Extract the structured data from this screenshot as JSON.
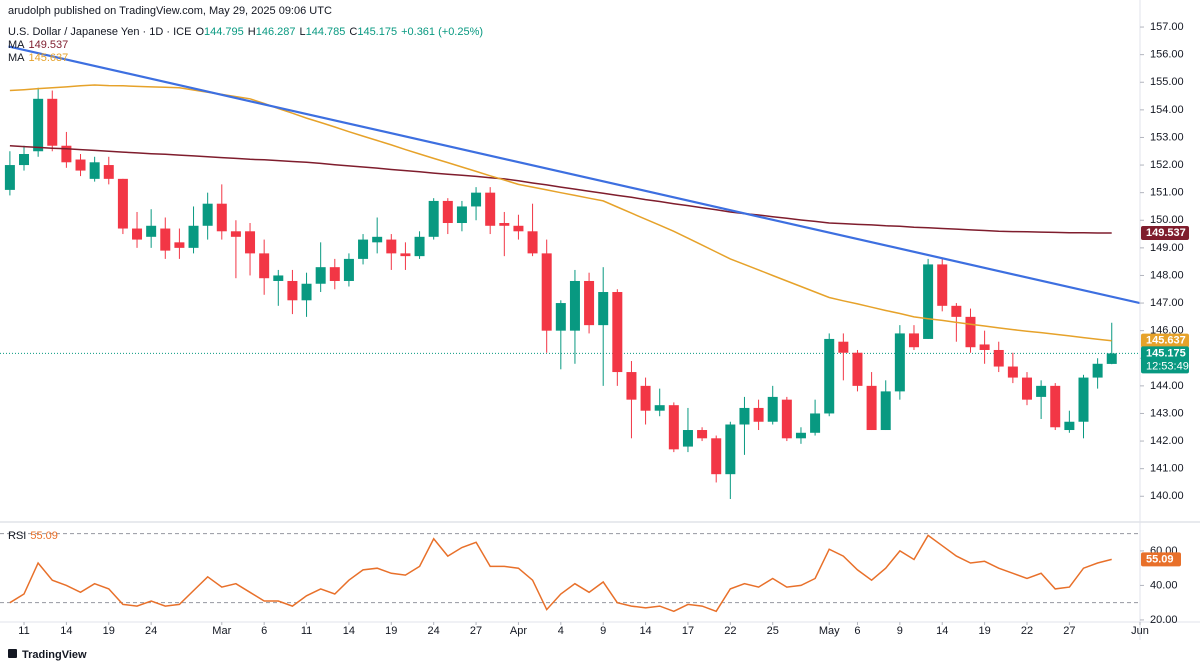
{
  "header": {
    "publisher": "arudolph published on TradingView.com, May 29, 2025 09:06 UTC"
  },
  "footer": {
    "brand": "TradingView"
  },
  "chart_data": [
    {
      "type": "candlestick",
      "symbol": "U.S. Dollar / Japanese Yen · 1D · ICE",
      "ohlc_letters": [
        "O",
        "H",
        "L",
        "C"
      ],
      "change": "+0.361 (+0.25%)",
      "countdown": "12:53:49",
      "up_color": "#089981",
      "down_color": "#f23645",
      "xlim": [
        -0.7,
        80
      ],
      "ylim": [
        139.14,
        157.98
      ],
      "xticks": [
        {
          "value": 1,
          "label": "11"
        },
        {
          "value": 4,
          "label": "14"
        },
        {
          "value": 7,
          "label": "19"
        },
        {
          "value": 10,
          "label": "24"
        },
        {
          "value": 15,
          "label": "Mar"
        },
        {
          "value": 18,
          "label": "6"
        },
        {
          "value": 21,
          "label": "11"
        },
        {
          "value": 24,
          "label": "14"
        },
        {
          "value": 27,
          "label": "19"
        },
        {
          "value": 30,
          "label": "24"
        },
        {
          "value": 33,
          "label": "27"
        },
        {
          "value": 36,
          "label": "Apr"
        },
        {
          "value": 39,
          "label": "4"
        },
        {
          "value": 42,
          "label": "9"
        },
        {
          "value": 45,
          "label": "14"
        },
        {
          "value": 48,
          "label": "17"
        },
        {
          "value": 51,
          "label": "22"
        },
        {
          "value": 54,
          "label": "25"
        },
        {
          "value": 58,
          "label": "May"
        },
        {
          "value": 60,
          "label": "6"
        },
        {
          "value": 63,
          "label": "9"
        },
        {
          "value": 66,
          "label": "14"
        },
        {
          "value": 69,
          "label": "19"
        },
        {
          "value": 72,
          "label": "22"
        },
        {
          "value": 75,
          "label": "27"
        },
        {
          "value": 80,
          "label": "Jun"
        }
      ],
      "yticks": [
        {
          "value": 140,
          "label": "140.00"
        },
        {
          "value": 141,
          "label": "141.00"
        },
        {
          "value": 142,
          "label": "142.00"
        },
        {
          "value": 143,
          "label": "143.00"
        },
        {
          "value": 144,
          "label": "144.00"
        },
        {
          "value": 145,
          "label": "145.00"
        },
        {
          "value": 146,
          "label": "146.00"
        },
        {
          "value": 147,
          "label": "147.00"
        },
        {
          "value": 148,
          "label": "148.00"
        },
        {
          "value": 149,
          "label": "149.00"
        },
        {
          "value": 150,
          "label": "150.00"
        },
        {
          "value": 151,
          "label": "151.00"
        },
        {
          "value": 152,
          "label": "152.00"
        },
        {
          "value": 153,
          "label": "153.00"
        },
        {
          "value": 154,
          "label": "154.00"
        },
        {
          "value": 155,
          "label": "155.00"
        },
        {
          "value": 156,
          "label": "156.00"
        },
        {
          "value": 157,
          "label": "157.00"
        }
      ],
      "open": [
        151.1,
        152.0,
        152.5,
        154.4,
        152.7,
        152.2,
        151.5,
        152.0,
        151.5,
        149.7,
        149.4,
        149.7,
        149.2,
        149.0,
        149.8,
        150.6,
        149.6,
        149.6,
        148.8,
        147.8,
        147.8,
        147.1,
        147.7,
        148.3,
        147.8,
        148.6,
        149.2,
        149.3,
        148.8,
        148.7,
        149.4,
        150.7,
        149.9,
        150.5,
        151.0,
        149.9,
        149.8,
        149.6,
        148.8,
        146.0,
        146.0,
        147.8,
        146.2,
        147.4,
        144.5,
        144.0,
        143.1,
        143.3,
        141.8,
        142.4,
        142.1,
        140.8,
        142.6,
        143.2,
        142.7,
        143.5,
        142.1,
        142.3,
        143.0,
        145.6,
        145.2,
        144.0,
        142.4,
        143.8,
        145.9,
        145.7,
        148.4,
        146.9,
        146.5,
        145.5,
        145.3,
        144.7,
        144.3,
        143.6,
        144.0,
        142.4,
        142.7,
        144.3,
        144.795
      ],
      "high": [
        152.5,
        152.7,
        154.8,
        154.7,
        153.2,
        152.4,
        152.3,
        152.3,
        151.5,
        150.3,
        150.4,
        150.1,
        149.7,
        150.5,
        151.0,
        151.3,
        150.0,
        149.9,
        149.3,
        148.2,
        148.2,
        148.1,
        149.2,
        148.6,
        148.8,
        149.5,
        150.1,
        149.5,
        149.2,
        149.6,
        150.8,
        150.8,
        150.7,
        151.2,
        151.2,
        150.3,
        150.2,
        150.6,
        149.3,
        147.1,
        148.2,
        148.1,
        148.3,
        147.5,
        144.9,
        144.3,
        143.9,
        143.4,
        143.2,
        142.5,
        142.2,
        142.7,
        143.6,
        143.5,
        144.0,
        143.6,
        142.5,
        143.5,
        145.9,
        145.9,
        145.3,
        144.5,
        144.2,
        146.2,
        146.2,
        148.6,
        148.6,
        147.0,
        146.8,
        146.0,
        145.6,
        145.2,
        144.5,
        144.2,
        144.1,
        143.1,
        144.4,
        145.0,
        146.287
      ],
      "low": [
        150.9,
        151.8,
        152.3,
        152.5,
        151.9,
        151.6,
        151.4,
        151.3,
        149.5,
        149.0,
        149.0,
        148.6,
        148.6,
        148.8,
        149.3,
        149.3,
        147.9,
        148.0,
        147.3,
        146.9,
        146.6,
        146.5,
        147.4,
        147.5,
        147.6,
        148.4,
        148.8,
        148.2,
        148.2,
        148.6,
        149.3,
        149.5,
        149.6,
        150.0,
        149.5,
        148.7,
        149.3,
        148.7,
        145.2,
        144.6,
        144.8,
        145.9,
        144.0,
        144.0,
        142.1,
        142.6,
        142.9,
        141.6,
        141.6,
        142.0,
        140.5,
        139.9,
        141.5,
        142.4,
        142.6,
        142.0,
        141.9,
        142.2,
        142.9,
        144.2,
        143.8,
        142.4,
        142.4,
        143.5,
        145.3,
        145.7,
        146.7,
        145.6,
        145.2,
        144.8,
        144.5,
        144.1,
        143.3,
        142.8,
        142.4,
        142.3,
        142.1,
        143.9,
        144.785
      ],
      "close": [
        152.0,
        152.4,
        154.4,
        152.7,
        152.1,
        151.8,
        152.1,
        151.5,
        149.7,
        149.3,
        149.8,
        148.9,
        149.0,
        149.8,
        150.6,
        149.6,
        149.4,
        148.8,
        147.9,
        148.0,
        147.1,
        147.7,
        148.3,
        147.8,
        148.6,
        149.3,
        149.4,
        148.8,
        148.7,
        149.4,
        150.7,
        149.9,
        150.5,
        151.0,
        149.8,
        149.8,
        149.6,
        148.8,
        146.0,
        147.0,
        147.8,
        146.2,
        147.4,
        144.5,
        143.5,
        143.1,
        143.3,
        141.7,
        142.4,
        142.1,
        140.8,
        142.6,
        143.2,
        142.7,
        143.6,
        142.1,
        142.3,
        143.0,
        145.7,
        145.2,
        144.0,
        142.4,
        143.8,
        145.9,
        145.4,
        148.4,
        146.9,
        146.5,
        145.4,
        145.3,
        144.7,
        144.3,
        143.5,
        144.0,
        142.5,
        142.7,
        144.3,
        144.8,
        145.175
      ],
      "series": [
        {
          "name": "MA",
          "color": "#7f1d2d",
          "values": [
            152.7,
            152.67,
            152.64,
            152.61,
            152.59,
            152.56,
            152.53,
            152.5,
            152.47,
            152.44,
            152.41,
            152.39,
            152.36,
            152.33,
            152.3,
            152.27,
            152.24,
            152.21,
            152.19,
            152.16,
            152.13,
            152.1,
            152.06,
            152.01,
            151.97,
            151.93,
            151.89,
            151.84,
            151.8,
            151.76,
            151.71,
            151.67,
            151.63,
            151.59,
            151.54,
            151.5,
            151.43,
            151.35,
            151.28,
            151.2,
            151.13,
            151.05,
            150.98,
            150.9,
            150.83,
            150.75,
            150.68,
            150.6,
            150.53,
            150.45,
            150.38,
            150.3,
            150.24,
            150.19,
            150.13,
            150.07,
            150.01,
            149.96,
            149.9,
            149.88,
            149.85,
            149.83,
            149.8,
            149.78,
            149.75,
            149.73,
            149.7,
            149.68,
            149.65,
            149.63,
            149.6,
            149.59,
            149.58,
            149.57,
            149.56,
            149.55,
            149.55,
            149.54,
            149.537
          ]
        },
        {
          "name": "MA",
          "color": "#e6a22a",
          "values": [
            154.7,
            154.73,
            154.77,
            154.8,
            154.83,
            154.87,
            154.9,
            154.88,
            154.87,
            154.85,
            154.83,
            154.82,
            154.8,
            154.72,
            154.64,
            154.56,
            154.48,
            154.4,
            154.23,
            154.05,
            153.88,
            153.7,
            153.54,
            153.38,
            153.21,
            153.05,
            152.89,
            152.73,
            152.56,
            152.4,
            152.24,
            152.09,
            151.93,
            151.77,
            151.61,
            151.46,
            151.3,
            151.2,
            151.1,
            151.0,
            150.9,
            150.8,
            150.7,
            150.48,
            150.26,
            150.04,
            149.82,
            149.6,
            149.35,
            149.1,
            148.85,
            148.6,
            148.4,
            148.2,
            148.0,
            147.8,
            147.6,
            147.4,
            147.2,
            147.08,
            146.97,
            146.85,
            146.73,
            146.62,
            146.5,
            146.43,
            146.37,
            146.3,
            146.23,
            146.17,
            146.1,
            146.04,
            145.98,
            145.93,
            145.87,
            145.81,
            145.75,
            145.69,
            145.637
          ]
        }
      ],
      "trendline": {
        "color": "#3d6fe0",
        "x": [
          -0.1,
          80
        ],
        "values": [
          156.3,
          147.0
        ]
      }
    },
    {
      "type": "line",
      "series": [
        {
          "name": "RSI",
          "color": "#e8702a",
          "values": [
            30,
            35,
            53,
            43,
            40,
            36,
            41,
            38,
            29,
            28,
            31,
            28,
            29,
            37,
            45,
            39,
            41,
            36,
            31,
            31,
            28,
            34,
            38,
            35,
            43,
            49,
            50,
            47,
            46,
            51,
            67,
            57,
            62,
            65,
            51,
            51,
            50,
            43,
            26,
            35,
            41,
            36,
            42,
            30,
            28,
            27,
            28,
            25,
            29,
            28,
            25,
            38,
            41,
            39,
            44,
            39,
            40,
            44,
            61,
            57,
            49,
            43,
            50,
            60,
            55,
            69,
            63,
            57,
            53,
            54,
            50,
            47,
            44,
            47,
            38,
            39,
            50,
            53,
            55.09
          ]
        }
      ],
      "ylim": [
        18.8,
        75.6
      ],
      "yticks": [
        {
          "value": 20,
          "label": "20.00"
        },
        {
          "value": 40,
          "label": "40.00"
        },
        {
          "value": 60,
          "label": "60.00"
        }
      ],
      "levels": [
        70,
        30
      ]
    }
  ]
}
